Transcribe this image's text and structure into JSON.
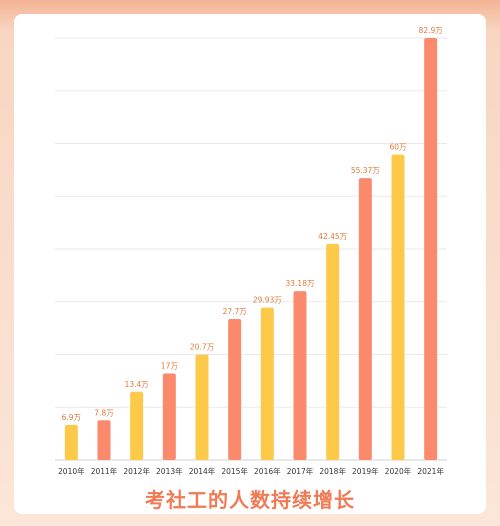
{
  "caption": "考社工的人数持续增长",
  "colors": {
    "orange": "#fb8a6c",
    "yellow": "#fdc949",
    "label": "#e07a3c",
    "grid": "#eaeaea",
    "tick": "#333333"
  },
  "chart_data": {
    "type": "bar",
    "categories": [
      "2010年",
      "2011年",
      "2012年",
      "2013年",
      "2014年",
      "2015年",
      "2016年",
      "2017年",
      "2018年",
      "2019年",
      "2020年",
      "2021年"
    ],
    "values": [
      6.9,
      7.8,
      13.4,
      17,
      20.7,
      27.7,
      29.93,
      33.18,
      42.45,
      55.37,
      60,
      82.9
    ],
    "value_labels": [
      "6.9万",
      "7.8万",
      "13.4万",
      "17万",
      "20.7万",
      "27.7万",
      "29.93万",
      "33.18万",
      "42.45万",
      "55.37万",
      "60万",
      "82.9万"
    ],
    "bar_colors": [
      "#fdc949",
      "#fb8a6c",
      "#fdc949",
      "#fb8a6c",
      "#fdc949",
      "#fb8a6c",
      "#fdc949",
      "#fb8a6c",
      "#fdc949",
      "#fb8a6c",
      "#fdc949",
      "#fb8a6c"
    ],
    "ylim": [
      0,
      82.9
    ],
    "grid": true,
    "title": "",
    "xlabel": "",
    "ylabel": ""
  }
}
